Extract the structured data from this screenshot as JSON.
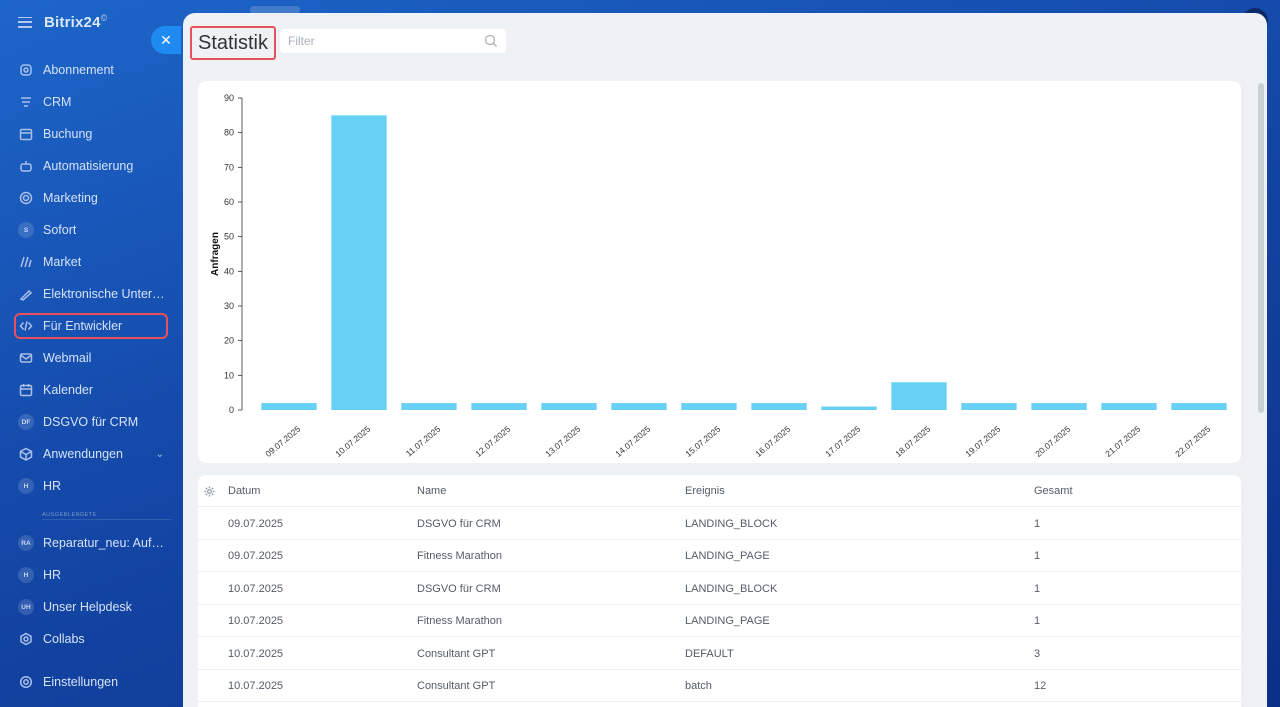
{
  "app": {
    "brand": "Bitrix24",
    "brand_mark": "©"
  },
  "sidebar": {
    "items": [
      {
        "label": "Abonnement",
        "icon": "subscription-icon"
      },
      {
        "label": "CRM",
        "icon": "crm-icon"
      },
      {
        "label": "Buchung",
        "icon": "calendar-grid-icon"
      },
      {
        "label": "Automatisierung",
        "icon": "robot-icon"
      },
      {
        "label": "Marketing",
        "icon": "target-icon"
      },
      {
        "label": "Sofort",
        "icon": "letter-s-icon",
        "badge": "S"
      },
      {
        "label": "Market",
        "icon": "market-icon"
      },
      {
        "label": "Elektronische Untersc...",
        "icon": "signature-icon"
      },
      {
        "label": "Für Entwickler",
        "icon": "code-icon",
        "active": true
      },
      {
        "label": "Webmail",
        "icon": "mail-icon"
      },
      {
        "label": "Kalender",
        "icon": "calendar-icon"
      },
      {
        "label": "DSGVO für CRM",
        "icon": "letter-df-icon",
        "badge": "DF"
      },
      {
        "label": "Anwendungen",
        "icon": "cube-icon",
        "chevron": true
      },
      {
        "label": "HR",
        "icon": "letter-h-icon",
        "badge": "H"
      }
    ],
    "section_label": "AUSGEBLENDETE",
    "hidden_items": [
      {
        "label": "Reparatur_neu: Aufga...",
        "badge": "RA"
      },
      {
        "label": "HR",
        "badge": "H"
      },
      {
        "label": "Unser Helpdesk",
        "badge": "UH"
      },
      {
        "label": "Collabs",
        "icon": "collabs-icon"
      }
    ],
    "settings_label": "Einstellungen"
  },
  "header": {
    "title": "Statistik",
    "filter_placeholder": "Filter"
  },
  "chart_data": {
    "type": "bar",
    "categories": [
      "09.07.2025",
      "10.07.2025",
      "11.07.2025",
      "12.07.2025",
      "13.07.2025",
      "14.07.2025",
      "15.07.2025",
      "16.07.2025",
      "17.07.2025",
      "18.07.2025",
      "19.07.2025",
      "20.07.2025",
      "21.07.2025",
      "22.07.2025"
    ],
    "values": [
      2,
      85,
      2,
      2,
      2,
      2,
      2,
      2,
      1,
      8,
      2,
      2,
      2,
      2
    ],
    "ylabel": "Anfragen",
    "ylim": [
      0,
      90
    ],
    "yticks": [
      0,
      10,
      20,
      30,
      40,
      50,
      60,
      70,
      80,
      90
    ],
    "bar_color": "#66d0f5",
    "grid": false
  },
  "table": {
    "columns": [
      "Datum",
      "Name",
      "Ereignis",
      "Gesamt"
    ],
    "rows": [
      [
        "09.07.2025",
        "DSGVO für CRM",
        "LANDING_BLOCK",
        "1"
      ],
      [
        "09.07.2025",
        "Fitness Marathon",
        "LANDING_PAGE",
        "1"
      ],
      [
        "10.07.2025",
        "DSGVO für CRM",
        "LANDING_BLOCK",
        "1"
      ],
      [
        "10.07.2025",
        "Fitness Marathon",
        "LANDING_PAGE",
        "1"
      ],
      [
        "10.07.2025",
        "Consultant GPT",
        "DEFAULT",
        "3"
      ],
      [
        "10.07.2025",
        "Consultant GPT",
        "batch",
        "12"
      ]
    ]
  },
  "colors": {
    "accent": "#1f8bf2",
    "highlight": "#e8505b",
    "panel_bg": "#eef2f4"
  }
}
